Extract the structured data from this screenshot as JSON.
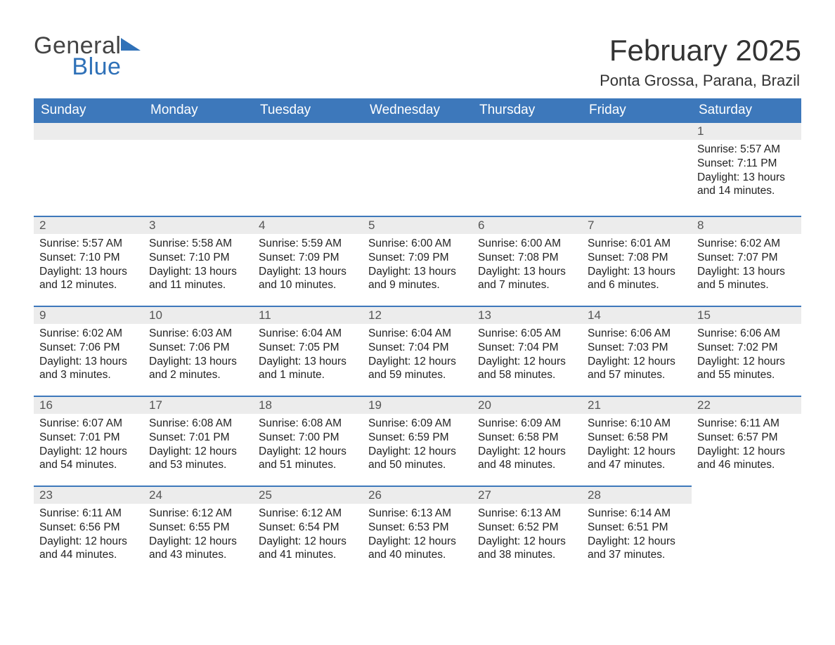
{
  "colors": {
    "header_bg": "#3d78bb",
    "header_text": "#ffffff",
    "daynum_bg": "#ececec",
    "daynum_border_top": "#3d78bb",
    "body_text": "#222222",
    "page_bg": "#ffffff",
    "logo_blue": "#2f71b8",
    "logo_gray": "#444444"
  },
  "typography": {
    "title_fontsize_pt": 32,
    "subtitle_fontsize_pt": 16,
    "weekday_fontsize_pt": 14,
    "daynum_fontsize_pt": 13,
    "detail_fontsize_pt": 12,
    "font_family": "Arial"
  },
  "logo": {
    "line1": "General",
    "line2": "Blue"
  },
  "title": "February 2025",
  "subtitle": "Ponta Grossa, Parana, Brazil",
  "weekdays": [
    "Sunday",
    "Monday",
    "Tuesday",
    "Wednesday",
    "Thursday",
    "Friday",
    "Saturday"
  ],
  "first_weekday_index": 6,
  "num_days": 28,
  "days": {
    "1": {
      "sunrise": "5:57 AM",
      "sunset": "7:11 PM",
      "daylight": "13 hours and 14 minutes."
    },
    "2": {
      "sunrise": "5:57 AM",
      "sunset": "7:10 PM",
      "daylight": "13 hours and 12 minutes."
    },
    "3": {
      "sunrise": "5:58 AM",
      "sunset": "7:10 PM",
      "daylight": "13 hours and 11 minutes."
    },
    "4": {
      "sunrise": "5:59 AM",
      "sunset": "7:09 PM",
      "daylight": "13 hours and 10 minutes."
    },
    "5": {
      "sunrise": "6:00 AM",
      "sunset": "7:09 PM",
      "daylight": "13 hours and 9 minutes."
    },
    "6": {
      "sunrise": "6:00 AM",
      "sunset": "7:08 PM",
      "daylight": "13 hours and 7 minutes."
    },
    "7": {
      "sunrise": "6:01 AM",
      "sunset": "7:08 PM",
      "daylight": "13 hours and 6 minutes."
    },
    "8": {
      "sunrise": "6:02 AM",
      "sunset": "7:07 PM",
      "daylight": "13 hours and 5 minutes."
    },
    "9": {
      "sunrise": "6:02 AM",
      "sunset": "7:06 PM",
      "daylight": "13 hours and 3 minutes."
    },
    "10": {
      "sunrise": "6:03 AM",
      "sunset": "7:06 PM",
      "daylight": "13 hours and 2 minutes."
    },
    "11": {
      "sunrise": "6:04 AM",
      "sunset": "7:05 PM",
      "daylight": "13 hours and 1 minute."
    },
    "12": {
      "sunrise": "6:04 AM",
      "sunset": "7:04 PM",
      "daylight": "12 hours and 59 minutes."
    },
    "13": {
      "sunrise": "6:05 AM",
      "sunset": "7:04 PM",
      "daylight": "12 hours and 58 minutes."
    },
    "14": {
      "sunrise": "6:06 AM",
      "sunset": "7:03 PM",
      "daylight": "12 hours and 57 minutes."
    },
    "15": {
      "sunrise": "6:06 AM",
      "sunset": "7:02 PM",
      "daylight": "12 hours and 55 minutes."
    },
    "16": {
      "sunrise": "6:07 AM",
      "sunset": "7:01 PM",
      "daylight": "12 hours and 54 minutes."
    },
    "17": {
      "sunrise": "6:08 AM",
      "sunset": "7:01 PM",
      "daylight": "12 hours and 53 minutes."
    },
    "18": {
      "sunrise": "6:08 AM",
      "sunset": "7:00 PM",
      "daylight": "12 hours and 51 minutes."
    },
    "19": {
      "sunrise": "6:09 AM",
      "sunset": "6:59 PM",
      "daylight": "12 hours and 50 minutes."
    },
    "20": {
      "sunrise": "6:09 AM",
      "sunset": "6:58 PM",
      "daylight": "12 hours and 48 minutes."
    },
    "21": {
      "sunrise": "6:10 AM",
      "sunset": "6:58 PM",
      "daylight": "12 hours and 47 minutes."
    },
    "22": {
      "sunrise": "6:11 AM",
      "sunset": "6:57 PM",
      "daylight": "12 hours and 46 minutes."
    },
    "23": {
      "sunrise": "6:11 AM",
      "sunset": "6:56 PM",
      "daylight": "12 hours and 44 minutes."
    },
    "24": {
      "sunrise": "6:12 AM",
      "sunset": "6:55 PM",
      "daylight": "12 hours and 43 minutes."
    },
    "25": {
      "sunrise": "6:12 AM",
      "sunset": "6:54 PM",
      "daylight": "12 hours and 41 minutes."
    },
    "26": {
      "sunrise": "6:13 AM",
      "sunset": "6:53 PM",
      "daylight": "12 hours and 40 minutes."
    },
    "27": {
      "sunrise": "6:13 AM",
      "sunset": "6:52 PM",
      "daylight": "12 hours and 38 minutes."
    },
    "28": {
      "sunrise": "6:14 AM",
      "sunset": "6:51 PM",
      "daylight": "12 hours and 37 minutes."
    }
  },
  "labels": {
    "sunrise_prefix": "Sunrise: ",
    "sunset_prefix": "Sunset: ",
    "daylight_prefix": "Daylight: "
  }
}
